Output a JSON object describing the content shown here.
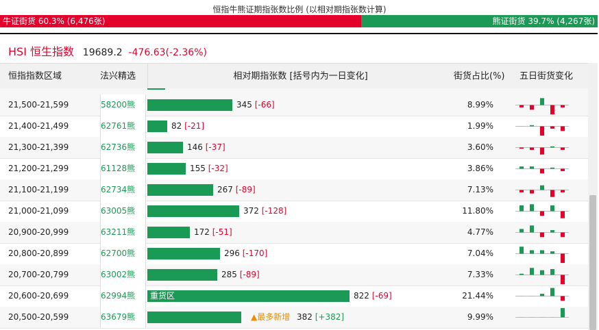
{
  "ratio": {
    "title": "恒指牛熊证期指张数比例 (以相对期指张数计算)",
    "bull_label": "牛证街货 60.3% (6,476张)",
    "bear_label": "熊证街货 39.7% (4,267张)",
    "bull_pct": 60.3,
    "bear_pct": 39.7,
    "colors": {
      "bull": "#e4002b",
      "bear": "#1b9a55"
    }
  },
  "index": {
    "name": "HSI 恒生指数",
    "price": "19689.2",
    "change": "-476.63(-2.36%)"
  },
  "table": {
    "headers": {
      "region": "恒指指数区域",
      "pick": "法兴精选",
      "relative": "相对期指张数 [括号内为一日变化]",
      "pct": "街货占比(%)",
      "five_day": "五日街货变化"
    },
    "rows": [
      {
        "region": "21,500-21,599",
        "pick": "58200熊",
        "value": 345,
        "value_text": "345",
        "delta": "[-66]",
        "pct": "8.99%",
        "spark": [
          -1,
          -2,
          3,
          -4,
          -1
        ]
      },
      {
        "region": "21,400-21,499",
        "pick": "62761熊",
        "value": 82,
        "value_text": "82",
        "delta": "[-21]",
        "pct": "1.99%",
        "spark": [
          0,
          0.5,
          -4,
          -1,
          -2
        ]
      },
      {
        "region": "21,300-21,399",
        "pick": "62736熊",
        "value": 146,
        "value_text": "146",
        "delta": "[-37]",
        "pct": "3.60%",
        "spark": [
          -0.5,
          -1,
          -3,
          0.5,
          -1
        ]
      },
      {
        "region": "21,200-21,299",
        "pick": "61128熊",
        "value": 155,
        "value_text": "155",
        "delta": "[-32]",
        "pct": "3.86%",
        "spark": [
          1,
          1,
          -2,
          0.5,
          -1
        ]
      },
      {
        "region": "21,100-21,199",
        "pick": "62734熊",
        "value": 267,
        "value_text": "267",
        "delta": "[-89]",
        "pct": "7.13%",
        "spark": [
          -1,
          -1.5,
          2,
          -3,
          -1
        ]
      },
      {
        "region": "21,000-21,099",
        "pick": "63005熊",
        "value": 372,
        "value_text": "372",
        "delta": "[-128]",
        "pct": "11.80%",
        "spark": [
          2.5,
          3,
          -2,
          2.5,
          -3
        ]
      },
      {
        "region": "20,900-20,999",
        "pick": "63211熊",
        "value": 172,
        "value_text": "172",
        "delta": "[-51]",
        "pct": "4.77%",
        "spark": [
          1.5,
          3,
          -2,
          1,
          -2
        ]
      },
      {
        "region": "20,800-20,899",
        "pick": "62700熊",
        "value": 296,
        "value_text": "296",
        "delta": "[-170]",
        "pct": "7.04%",
        "spark": [
          3,
          1.5,
          1.5,
          1,
          -4
        ]
      },
      {
        "region": "20,700-20,799",
        "pick": "63002熊",
        "value": 285,
        "value_text": "285",
        "delta": "[-89]",
        "pct": "7.33%",
        "spark": [
          0.5,
          3,
          2,
          2.5,
          -4
        ]
      },
      {
        "region": "20,600-20,699",
        "pick": "62994熊",
        "value": 822,
        "value_text": "822",
        "delta": "[-69]",
        "pct": "21.44%",
        "heavy_label": "重货区",
        "spark": [
          0,
          0,
          1,
          3.5,
          -2
        ]
      },
      {
        "region": "20,500-20,599",
        "pick": "63679熊",
        "value": 382,
        "value_text": "382",
        "delta": "[+382]",
        "pct": "9.99%",
        "tag": "▲最多新增",
        "spark": [
          0,
          0,
          0,
          0,
          4
        ]
      }
    ]
  }
}
